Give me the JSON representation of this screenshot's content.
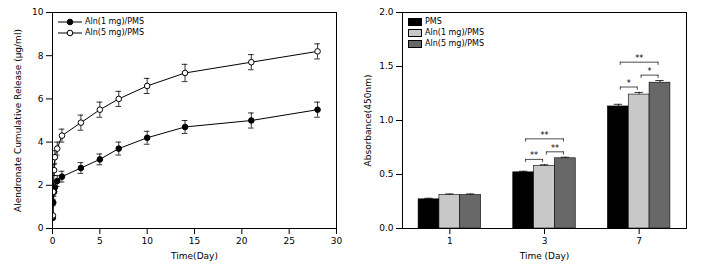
{
  "chart_data": [
    {
      "type": "line",
      "x_label": "Time(Day)",
      "y_label": "Alendronate Cumulative Release (µg/ml)",
      "x": [
        0.04,
        0.08,
        0.17,
        0.25,
        0.5,
        1,
        3,
        5,
        7,
        10,
        14,
        21,
        28
      ],
      "series": [
        {
          "name": "Aln(1 mg)/PMS",
          "color": "#000000",
          "marker": "circle",
          "values": [
            0.5,
            1.2,
            1.7,
            1.9,
            2.2,
            2.4,
            2.8,
            3.2,
            3.7,
            4.2,
            4.7,
            5.0,
            5.5
          ],
          "errors": [
            0.1,
            0.15,
            0.2,
            0.2,
            0.25,
            0.25,
            0.25,
            0.25,
            0.3,
            0.3,
            0.3,
            0.35,
            0.35
          ]
        },
        {
          "name": "Aln(5 mg)/PMS",
          "color": "#000000",
          "marker": "circle-open",
          "values": [
            0.6,
            1.7,
            2.7,
            3.3,
            3.7,
            4.3,
            4.9,
            5.5,
            6.0,
            6.6,
            7.2,
            7.7,
            8.2
          ],
          "errors": [
            0.1,
            0.2,
            0.25,
            0.3,
            0.3,
            0.3,
            0.35,
            0.35,
            0.35,
            0.35,
            0.4,
            0.35,
            0.35
          ]
        }
      ],
      "xlim": [
        0,
        30
      ],
      "xticks": [
        0,
        5,
        10,
        15,
        20,
        25,
        30
      ],
      "ylim": [
        0,
        10
      ],
      "yticks": [
        0,
        2,
        4,
        6,
        8,
        10
      ],
      "legend": "top-left"
    },
    {
      "type": "bar",
      "x_label": "Time (Day)",
      "y_label": "Absorbance(450nm)",
      "categories": [
        "1",
        "3",
        "7"
      ],
      "series": [
        {
          "name": "PMS",
          "color": "#000000",
          "values": [
            0.27,
            0.52,
            1.13
          ],
          "errors": [
            0.01,
            0.01,
            0.02
          ]
        },
        {
          "name": "Aln(1 mg)/PMS",
          "color": "#c8c8c8",
          "values": [
            0.31,
            0.58,
            1.24
          ],
          "errors": [
            0.01,
            0.01,
            0.02
          ]
        },
        {
          "name": "Aln(5 mg)/PMS",
          "color": "#686868",
          "values": [
            0.31,
            0.65,
            1.35
          ],
          "errors": [
            0.01,
            0.01,
            0.02
          ]
        }
      ],
      "annotations": [
        {
          "category": "3",
          "from": "PMS",
          "to": "Aln(5 mg)/PMS",
          "label": "**"
        },
        {
          "category": "3",
          "from": "PMS",
          "to": "Aln(1 mg)/PMS",
          "label": "**"
        },
        {
          "category": "3",
          "from": "Aln(1 mg)/PMS",
          "to": "Aln(5 mg)/PMS",
          "label": "**"
        },
        {
          "category": "7",
          "from": "PMS",
          "to": "Aln(5 mg)/PMS",
          "label": "**"
        },
        {
          "category": "7",
          "from": "PMS",
          "to": "Aln(1 mg)/PMS",
          "label": "*"
        },
        {
          "category": "7",
          "from": "Aln(1 mg)/PMS",
          "to": "Aln(5 mg)/PMS",
          "label": "*"
        }
      ],
      "ylim": [
        0,
        2
      ],
      "yticks": [
        {
          "value": 0,
          "label": "0.0"
        },
        {
          "value": 0.5,
          "label": "0.5"
        },
        {
          "value": 1,
          "label": "1.0"
        },
        {
          "value": 1.5,
          "label": "1.5"
        },
        {
          "value": 2,
          "label": "2.0"
        }
      ],
      "legend": "top-left"
    }
  ]
}
